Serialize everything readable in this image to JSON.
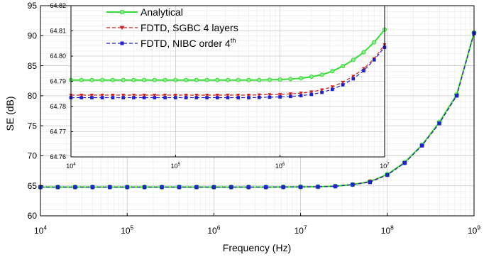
{
  "chart_data": [
    {
      "type": "line",
      "xscale": "log",
      "xlim": [
        10000,
        1000000000
      ],
      "ylim": [
        60,
        95
      ],
      "xlabel": "Frequency (Hz)",
      "ylabel": "SE (dB)",
      "x_ticks": [
        {
          "mantissa": "10",
          "exp": "4"
        },
        {
          "mantissa": "10",
          "exp": "5"
        },
        {
          "mantissa": "10",
          "exp": "6"
        },
        {
          "mantissa": "10",
          "exp": "7"
        },
        {
          "mantissa": "10",
          "exp": "8"
        },
        {
          "mantissa": "10",
          "exp": "9"
        }
      ],
      "y_ticks": [
        "60",
        "65",
        "70",
        "75",
        "80",
        "85",
        "90",
        "95"
      ],
      "grid": true,
      "legend_position": "top-left",
      "x": [
        10000,
        15849,
        25119,
        39811,
        63096,
        100000,
        158489,
        251189,
        398107,
        630957,
        1000000,
        1584893,
        2511886,
        3981072,
        6309573,
        10000000,
        15848932,
        25118864,
        39810717,
        63095734,
        100000000,
        158489319,
        251188643,
        398107171,
        630957344,
        1000000000
      ],
      "series": [
        {
          "name": "Analytical",
          "values": [
            64.79,
            64.79,
            64.79,
            64.79,
            64.79,
            64.79,
            64.79,
            64.79,
            64.79,
            64.79,
            64.79,
            64.79,
            64.79,
            64.79,
            64.8,
            64.82,
            64.85,
            64.95,
            65.2,
            65.7,
            66.9,
            68.9,
            71.8,
            75.6,
            80.2,
            90.5
          ]
        },
        {
          "name": "FDTD, SGBC 4 layers",
          "values": [
            64.78,
            64.78,
            64.78,
            64.78,
            64.78,
            64.78,
            64.78,
            64.78,
            64.78,
            64.78,
            64.78,
            64.78,
            64.78,
            64.78,
            64.79,
            64.81,
            64.84,
            64.93,
            65.2,
            65.7,
            66.8,
            68.8,
            71.7,
            75.4,
            80.0,
            90.4
          ]
        },
        {
          "name": "FDTD, NIBC order 4th",
          "values": [
            64.78,
            64.78,
            64.78,
            64.78,
            64.78,
            64.78,
            64.78,
            64.78,
            64.78,
            64.78,
            64.78,
            64.78,
            64.78,
            64.78,
            64.79,
            64.81,
            64.84,
            64.92,
            65.2,
            65.6,
            66.8,
            68.8,
            71.7,
            75.4,
            80.0,
            90.4
          ]
        }
      ]
    },
    {
      "type": "line",
      "inset": true,
      "xscale": "log",
      "xlim": [
        10000,
        10000000
      ],
      "ylim": [
        64.76,
        64.82
      ],
      "x_ticks": [
        {
          "mantissa": "10",
          "exp": "4"
        },
        {
          "mantissa": "10",
          "exp": "5"
        },
        {
          "mantissa": "10",
          "exp": "6"
        },
        {
          "mantissa": "10",
          "exp": "7"
        }
      ],
      "y_ticks": [
        "64.76",
        "64.77",
        "64.78",
        "64.79",
        "64.80",
        "64.81",
        "64.82"
      ],
      "grid": true,
      "x": [
        10000,
        12589,
        15849,
        19953,
        25119,
        31623,
        39811,
        50119,
        63096,
        79433,
        100000,
        125893,
        158489,
        199526,
        251189,
        316228,
        398107,
        501187,
        630957,
        794328,
        1000000,
        1258925,
        1584893,
        1995262,
        2511886,
        3162278,
        3981072,
        5011872,
        6309573,
        7943282,
        10000000
      ],
      "series": [
        {
          "name": "Analytical",
          "values": [
            64.7905,
            64.7905,
            64.7905,
            64.7905,
            64.7905,
            64.7905,
            64.7905,
            64.7905,
            64.7905,
            64.7905,
            64.7905,
            64.7905,
            64.7905,
            64.7905,
            64.7905,
            64.7905,
            64.7905,
            64.7905,
            64.7905,
            64.7906,
            64.7907,
            64.7909,
            64.7912,
            64.7918,
            64.7926,
            64.794,
            64.796,
            64.7985,
            64.8015,
            64.8055,
            64.8105
          ]
        },
        {
          "name": "FDTD, SGBC 4 layers",
          "values": [
            64.7845,
            64.7845,
            64.7845,
            64.7845,
            64.7845,
            64.7845,
            64.7845,
            64.7845,
            64.7845,
            64.7845,
            64.7845,
            64.7845,
            64.7845,
            64.7845,
            64.7845,
            64.7845,
            64.7845,
            64.7845,
            64.7846,
            64.7847,
            64.7848,
            64.785,
            64.7853,
            64.7858,
            64.7866,
            64.7878,
            64.7896,
            64.792,
            64.795,
            64.799,
            64.8045
          ]
        },
        {
          "name": "FDTD, NIBC order 4th",
          "values": [
            64.7835,
            64.7835,
            64.7835,
            64.7835,
            64.7835,
            64.7835,
            64.7835,
            64.7835,
            64.7835,
            64.7835,
            64.7835,
            64.7835,
            64.7835,
            64.7835,
            64.7835,
            64.7835,
            64.7835,
            64.7835,
            64.7836,
            64.7837,
            64.7838,
            64.784,
            64.7843,
            64.7848,
            64.7856,
            64.7868,
            64.7886,
            64.791,
            64.7942,
            64.7985,
            64.8035
          ]
        }
      ]
    }
  ],
  "legend": {
    "entries": [
      {
        "label": "Analytical",
        "sup": ""
      },
      {
        "label": "FDTD, SGBC 4 layers",
        "sup": ""
      },
      {
        "label": "FDTD, NIBC order 4",
        "sup": "th"
      }
    ]
  },
  "colors": {
    "analytical": "#33dd33",
    "sgbc": "#cc2222",
    "nibc": "#2222cc",
    "grid_major": "#c8c8c8",
    "grid_minor": "#e8e8e8"
  },
  "markers": {
    "analytical": "circle",
    "sgbc": "triangle-down",
    "nibc": "square"
  }
}
